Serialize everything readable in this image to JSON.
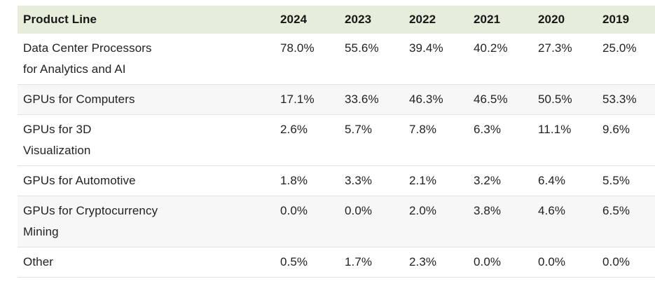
{
  "colors": {
    "header_bg": "#e6eedb",
    "stripe_bg": "#f7f7f8",
    "divider": "#e2e2e2",
    "text": "#1f2022",
    "header_text": "#161718"
  },
  "chart_data": {
    "type": "table",
    "title": "",
    "columns": [
      "Product Line",
      "2024",
      "2023",
      "2022",
      "2021",
      "2020",
      "2019"
    ],
    "value_unit": "%",
    "rows": [
      {
        "label": "Data Center Processors for Analytics and AI",
        "label_display": "Data Center Processors\nfor Analytics and AI",
        "values": [
          78.0,
          55.6,
          39.4,
          40.2,
          27.3,
          25.0
        ],
        "values_display": [
          "78.0%",
          "55.6%",
          "39.4%",
          "40.2%",
          "27.3%",
          "25.0%"
        ]
      },
      {
        "label": "GPUs for Computers",
        "label_display": "GPUs for Computers",
        "values": [
          17.1,
          33.6,
          46.3,
          46.5,
          50.5,
          53.3
        ],
        "values_display": [
          "17.1%",
          "33.6%",
          "46.3%",
          "46.5%",
          "50.5%",
          "53.3%"
        ]
      },
      {
        "label": "GPUs for 3D Visualization",
        "label_display": "GPUs for 3D\nVisualization",
        "values": [
          2.6,
          5.7,
          7.8,
          6.3,
          11.1,
          9.6
        ],
        "values_display": [
          "2.6%",
          "5.7%",
          "7.8%",
          "6.3%",
          "11.1%",
          "9.6%"
        ]
      },
      {
        "label": "GPUs for Automotive",
        "label_display": "GPUs for Automotive",
        "values": [
          1.8,
          3.3,
          2.1,
          3.2,
          6.4,
          5.5
        ],
        "values_display": [
          "1.8%",
          "3.3%",
          "2.1%",
          "3.2%",
          "6.4%",
          "5.5%"
        ]
      },
      {
        "label": "GPUs for Cryptocurrency Mining",
        "label_display": "GPUs for Cryptocurrency\nMining",
        "values": [
          0.0,
          0.0,
          2.0,
          3.8,
          4.6,
          6.5
        ],
        "values_display": [
          "0.0%",
          "0.0%",
          "2.0%",
          "3.8%",
          "4.6%",
          "6.5%"
        ]
      },
      {
        "label": "Other",
        "label_display": "Other",
        "values": [
          0.5,
          1.7,
          2.3,
          0.0,
          0.0,
          0.0
        ],
        "values_display": [
          "0.5%",
          "1.7%",
          "2.3%",
          "0.0%",
          "0.0%",
          "0.0%"
        ]
      }
    ]
  }
}
